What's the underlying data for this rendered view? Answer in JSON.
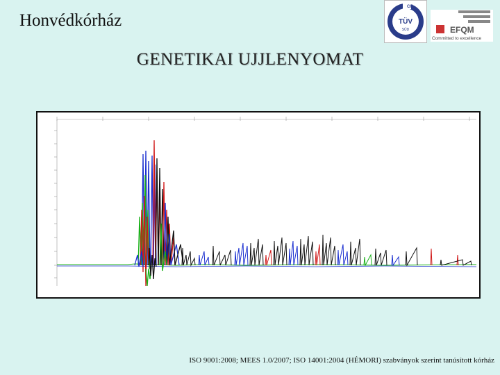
{
  "header": {
    "org_name": "Honvédkórház"
  },
  "slide": {
    "title": "GENETIKAI  UJJLENYOMAT"
  },
  "logos": {
    "tuv": {
      "icon": "tuv-cert-icon",
      "lines": [
        "CH",
        "TÜV",
        "SÜD"
      ]
    },
    "efqm": {
      "icon": "efqm-logo-icon",
      "name": "EFQM",
      "tagline": "Committed to excellence"
    }
  },
  "footer": {
    "text": "ISO 9001:2008; MEES 1.0/2007; ISO 14001:2004 (HÉMORI) szabványok szerint tanúsított kórház"
  },
  "colors": {
    "background": "#d9f3f0",
    "blue": "#1a2fd0",
    "red": "#d01818",
    "green": "#18b018",
    "black": "#111111"
  }
}
